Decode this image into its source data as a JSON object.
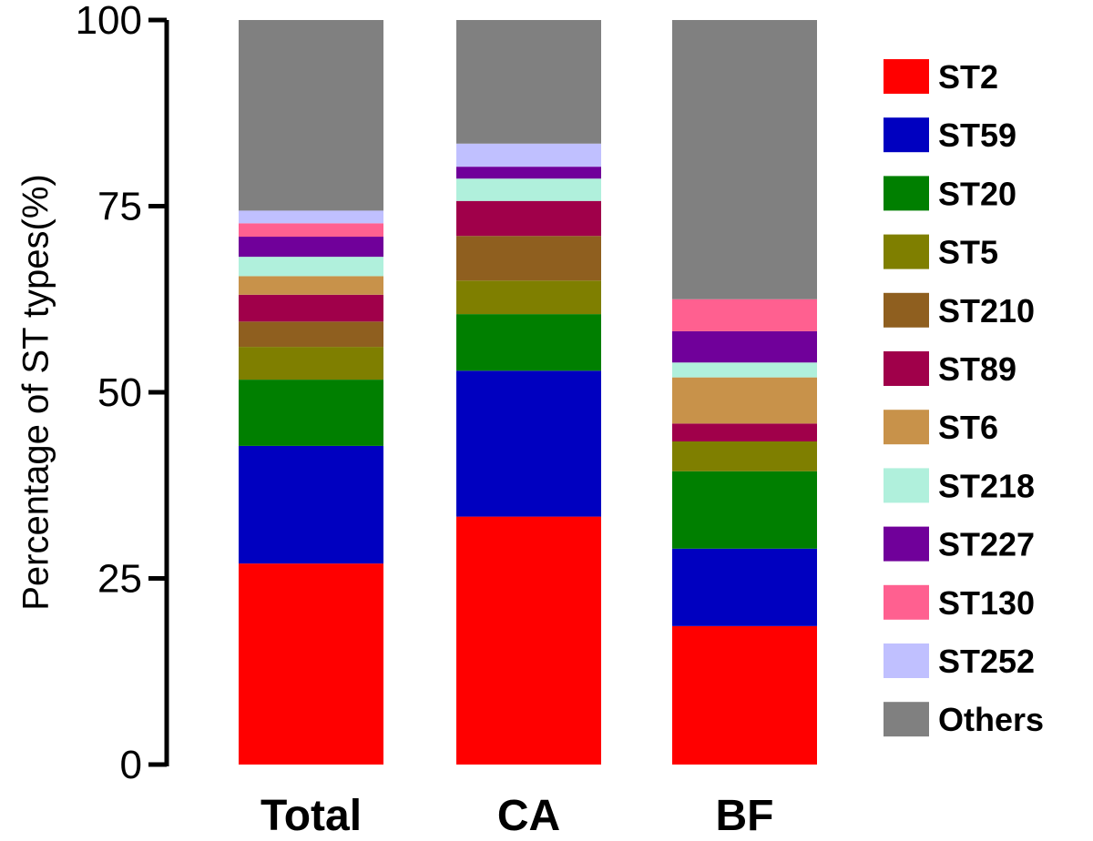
{
  "chart_data": {
    "type": "bar",
    "stacked": true,
    "title": "",
    "xlabel": "",
    "ylabel": "Percentage of ST types(%)",
    "ylim": [
      0,
      100
    ],
    "yticks": [
      "0",
      "25",
      "50",
      "75",
      "100"
    ],
    "grid": false,
    "legend_position": "right",
    "categories": [
      "Total",
      "CA",
      "BF"
    ],
    "series": [
      {
        "name": "ST2",
        "color": "#ff0000",
        "values": [
          27.0,
          33.3,
          18.6
        ]
      },
      {
        "name": "ST59",
        "color": "#0000c0",
        "values": [
          15.8,
          19.6,
          10.4
        ]
      },
      {
        "name": "ST20",
        "color": "#007f00",
        "values": [
          8.9,
          7.6,
          10.4
        ]
      },
      {
        "name": "ST5",
        "color": "#7f7f00",
        "values": [
          4.4,
          4.5,
          4.0
        ]
      },
      {
        "name": "ST210",
        "color": "#8f5f1f",
        "values": [
          3.4,
          6.0,
          0
        ]
      },
      {
        "name": "ST89",
        "color": "#a0004a",
        "values": [
          3.6,
          4.7,
          2.4
        ]
      },
      {
        "name": "ST6",
        "color": "#c8924a",
        "values": [
          2.5,
          0,
          6.2
        ]
      },
      {
        "name": "ST218",
        "color": "#b0f0dc",
        "values": [
          2.6,
          3.0,
          2.0
        ]
      },
      {
        "name": "ST227",
        "color": "#70009a",
        "values": [
          2.7,
          1.6,
          4.2
        ]
      },
      {
        "name": "ST130",
        "color": "#ff6090",
        "values": [
          1.8,
          0,
          4.3
        ]
      },
      {
        "name": "ST252",
        "color": "#c0c0ff",
        "values": [
          1.7,
          3.1,
          0
        ]
      },
      {
        "name": "Others",
        "color": "#808080",
        "values": [
          25.6,
          16.6,
          37.5
        ]
      }
    ]
  }
}
